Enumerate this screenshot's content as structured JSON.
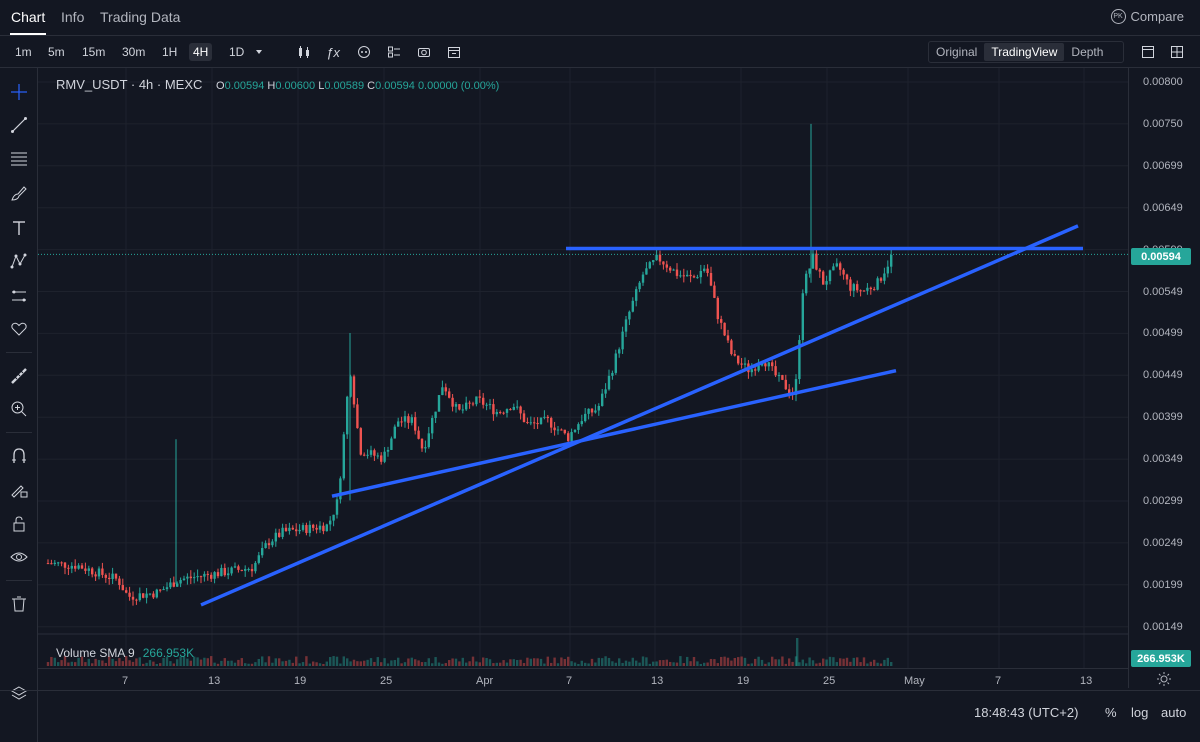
{
  "tabs": [
    {
      "label": "Chart",
      "active": true
    },
    {
      "label": "Info",
      "active": false
    },
    {
      "label": "Trading Data",
      "active": false
    }
  ],
  "compare": {
    "badge": "PK",
    "label": "Compare"
  },
  "timeframes": [
    "1m",
    "5m",
    "15m",
    "30m",
    "1H",
    "4H",
    "1D"
  ],
  "active_timeframe": "4H",
  "toolbar_icons": [
    "chevron-down-icon",
    "candles-icon",
    "fx-icon",
    "indicator-template-icon",
    "layout-icon",
    "camera-icon",
    "calendar-icon"
  ],
  "view_modes": [
    "Original",
    "TradingView",
    "Depth"
  ],
  "active_view_mode": "TradingView",
  "legend": {
    "symbol": "RMV_USDT · 4h · MEXC",
    "open_label": "O",
    "open": "0.00594",
    "high_label": "H",
    "high": "0.00600",
    "low_label": "L",
    "low": "0.00589",
    "close_label": "C",
    "close": "0.00594",
    "change": "0.00000 (0.00%)"
  },
  "volume_legend": {
    "label": "Volume SMA 9",
    "value": "266.953K"
  },
  "sidebar_icons": [
    "crosshair-icon",
    "trendline-icon",
    "horizontal-lines-icon",
    "brush-icon",
    "text-icon",
    "pattern-icon",
    "measure-icon",
    "heart-icon",
    "ruler-icon",
    "zoom-in-icon",
    "magnet-icon",
    "lock-pencil-icon",
    "lock-icon",
    "eye-icon",
    "trash-icon",
    "layers-icon"
  ],
  "price_axis": [
    "0.00800",
    "0.00750",
    "0.00699",
    "0.00649",
    "0.00599",
    "0.00549",
    "0.00499",
    "0.00449",
    "0.00399",
    "0.00349",
    "0.00299",
    "0.00249",
    "0.00199",
    "0.00149"
  ],
  "current_price": "0.00594",
  "current_volume": "266.953K",
  "time_axis": [
    "7",
    "13",
    "19",
    "25",
    "Apr",
    "7",
    "13",
    "19",
    "25",
    "May",
    "7",
    "13"
  ],
  "bottom": {
    "clock": "18:48:43 (UTC+2)",
    "percent": "%",
    "log": "log",
    "auto": "auto"
  },
  "colors": {
    "up": "#26a69a",
    "down": "#ef5350",
    "trendline": "#2962ff",
    "background": "#131722"
  },
  "drawings": [
    {
      "type": "horizontal-resistance",
      "price": 0.00601
    },
    {
      "type": "ascending-trendline-lower"
    },
    {
      "type": "ascending-trendline-middle"
    }
  ]
}
